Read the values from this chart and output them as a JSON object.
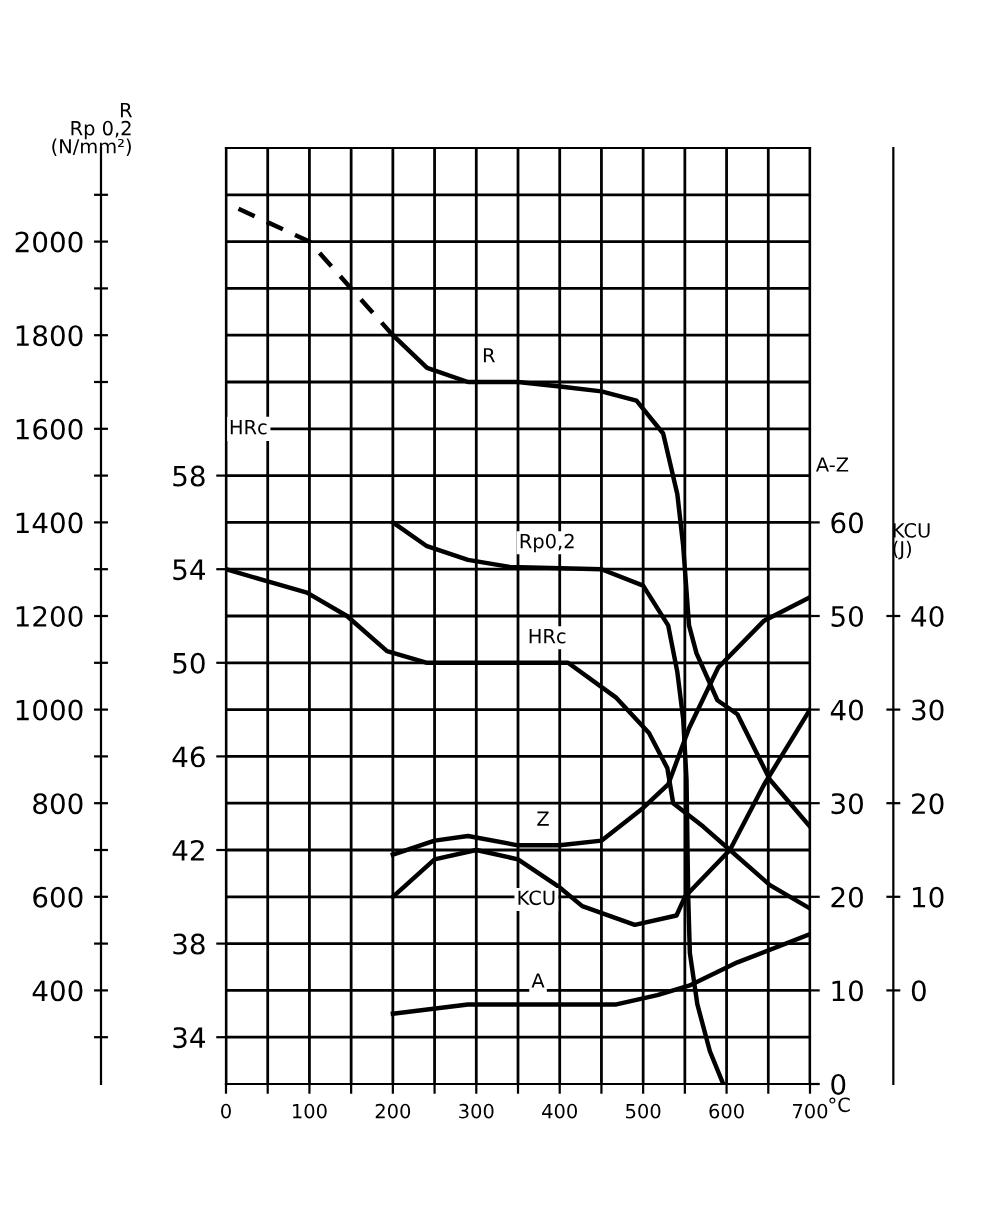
{
  "chart_data": [
    {
      "type": "line",
      "ylabel": "R\nRp 0,2\n(N/mm²)",
      "y2label": "HRc",
      "xlabel": "°C",
      "xlim": [
        0,
        700
      ],
      "xticks": [
        0,
        {
          "value": 50,
          "label": null
        },
        100,
        {
          "value": 150,
          "label": null
        },
        200,
        {
          "value": 250,
          "label": null
        },
        300,
        {
          "value": 350,
          "label": null
        },
        400,
        {
          "value": 450,
          "label": null
        },
        500,
        {
          "value": 550,
          "label": null
        },
        600,
        {
          "value": 650,
          "label": null
        },
        700
      ],
      "ylim": [
        200,
        2200
      ],
      "yticks": [
        {
          "value": 300,
          "label": null
        },
        400,
        {
          "value": 500,
          "label": null
        },
        600,
        {
          "value": 700,
          "label": null
        },
        800,
        {
          "value": 900,
          "label": null
        },
        1000,
        {
          "value": 1100,
          "label": null
        },
        1200,
        {
          "value": 1300,
          "label": null
        },
        1400,
        {
          "value": 1500,
          "label": null
        },
        1600,
        {
          "value": 1700,
          "label": null
        },
        1800,
        {
          "value": 1900,
          "label": null
        },
        2000,
        {
          "value": 2100,
          "label": null
        }
      ],
      "y2lim": [
        32,
        72
      ],
      "y2ticks": [
        34,
        38,
        42,
        46,
        50,
        54,
        58
      ],
      "grid": true,
      "series": [
        {
          "color": "#000000",
          "line_style": "dashed",
          "x": [
            15,
            100,
            150,
            200
          ],
          "values": [
            2070,
            2000,
            1900,
            1800
          ]
        },
        {
          "name": "R",
          "color": "#000000",
          "x": [
            200,
            241,
            290,
            350,
            403,
            450,
            492,
            524,
            541,
            548,
            555,
            564,
            589,
            613,
            652,
            700
          ],
          "values": [
            1800,
            1730,
            1700,
            1700,
            1690,
            1680,
            1660,
            1590,
            1460,
            1350,
            1180,
            1120,
            1020,
            990,
            850,
            750
          ]
        },
        {
          "name": "Rp0,2",
          "color": "#000000",
          "x": [
            200,
            240,
            290,
            340,
            450,
            500,
            530,
            541,
            548,
            552,
            554,
            556,
            565,
            580,
            596
          ],
          "values": [
            1400,
            1350,
            1320,
            1305,
            1300,
            1265,
            1180,
            1080,
            980,
            850,
            600,
            480,
            370,
            270,
            200
          ]
        },
        {
          "name": "HRc",
          "color": "#000000",
          "axis": "y2",
          "x": [
            0,
            48,
            97,
            145,
            193,
            241,
            290,
            410,
            468,
            507,
            529,
            536,
            572,
            604,
            652,
            700
          ],
          "values": [
            54,
            53.5,
            53,
            52,
            50.5,
            50,
            50,
            50,
            48.5,
            47,
            45.5,
            44,
            43,
            42,
            40.5,
            39.5
          ]
        }
      ]
    },
    {
      "type": "line",
      "ylabel": "A-Z",
      "y2label": "KCU\n(J)",
      "tick_labels": "y",
      "xlim": [
        0,
        700
      ],
      "ylim": [
        0,
        100
      ],
      "yticks": [
        0,
        10,
        20,
        30,
        40,
        50,
        60
      ],
      "y2lim": [
        -10,
        90
      ],
      "y2ticks": [
        0,
        10,
        20,
        30,
        40
      ],
      "series": [
        {
          "name": "Z",
          "color": "#000000",
          "x": [
            200,
            250,
            290,
            350,
            400,
            450,
            500,
            530,
            555,
            590,
            645,
            700
          ],
          "values": [
            24.5,
            26,
            26.5,
            25.5,
            25.5,
            26,
            29.5,
            32,
            38,
            44.5,
            49.5,
            52
          ]
        },
        {
          "name": "KCU",
          "color": "#000000",
          "axis": "y2",
          "x": [
            200,
            250,
            300,
            350,
            400,
            427,
            490,
            540,
            550,
            604,
            645,
            700
          ],
          "values": [
            10,
            14,
            15,
            14,
            11,
            9,
            7,
            8,
            10,
            15,
            22,
            30
          ]
        },
        {
          "name": "A",
          "color": "#000000",
          "x": [
            200,
            290,
            400,
            468,
            517,
            555,
            613,
            700
          ],
          "values": [
            7.5,
            8.5,
            8.5,
            8.5,
            9.5,
            10.5,
            13,
            16
          ]
        }
      ]
    }
  ]
}
